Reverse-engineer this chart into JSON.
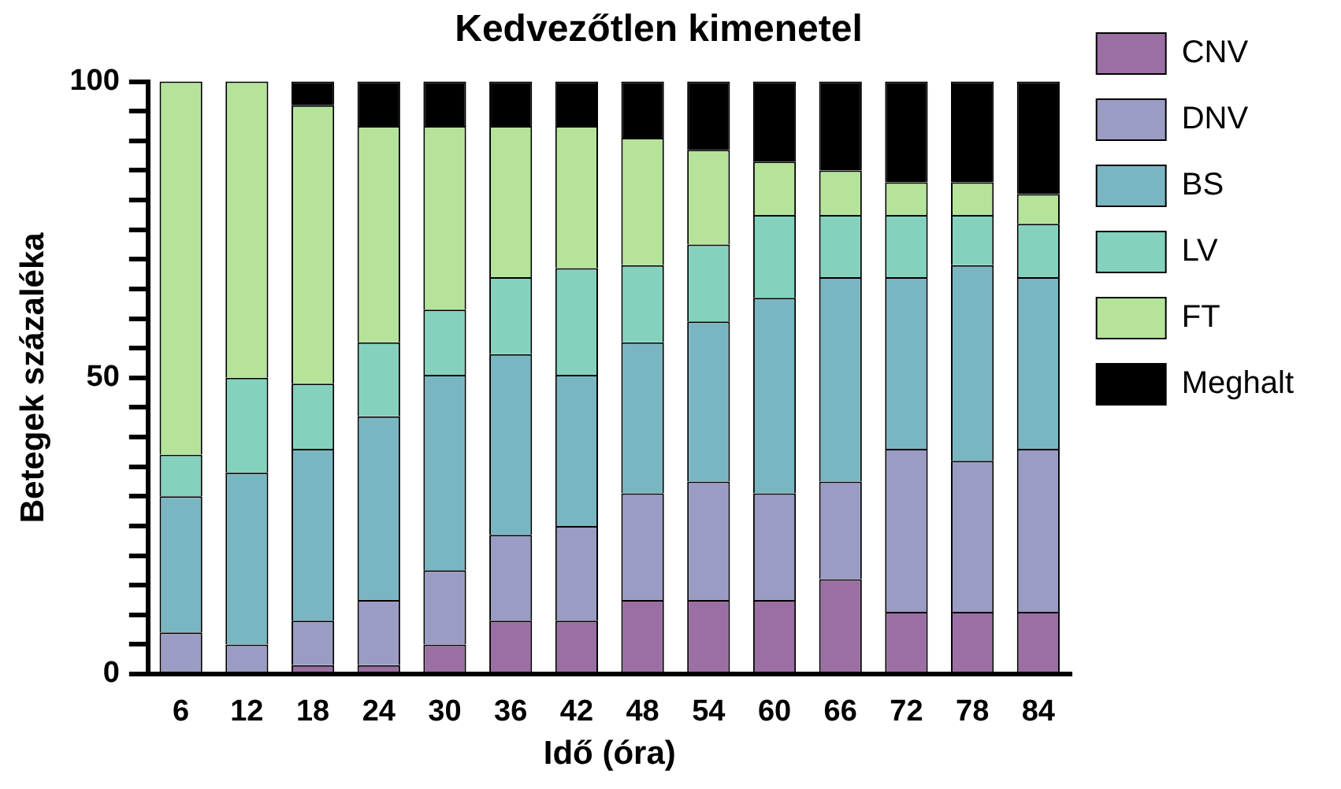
{
  "chart_data": {
    "type": "bar",
    "title": "Kedvezőtlen kimenetel",
    "xlabel": "Idő (óra)",
    "ylabel": "Betegek százaléka",
    "categories": [
      "6",
      "12",
      "18",
      "24",
      "30",
      "36",
      "42",
      "48",
      "54",
      "60",
      "66",
      "72",
      "78",
      "84"
    ],
    "stacked": true,
    "legend": "right",
    "grid": false,
    "ylim": [
      0,
      100
    ],
    "yticks": [
      0,
      {
        "value": 5,
        "label": null
      },
      {
        "value": 10,
        "label": null
      },
      {
        "value": 15,
        "label": null
      },
      {
        "value": 20,
        "label": null
      },
      {
        "value": 25,
        "label": null
      },
      {
        "value": 30,
        "label": null
      },
      {
        "value": 35,
        "label": null
      },
      {
        "value": 40,
        "label": null
      },
      {
        "value": 45,
        "label": null
      },
      50,
      {
        "value": 55,
        "label": null
      },
      {
        "value": 60,
        "label": null
      },
      {
        "value": 65,
        "label": null
      },
      {
        "value": 70,
        "label": null
      },
      {
        "value": 75,
        "label": null
      },
      {
        "value": 80,
        "label": null
      },
      {
        "value": 85,
        "label": null
      },
      {
        "value": 90,
        "label": null
      },
      {
        "value": 95,
        "label": null
      },
      100
    ],
    "series": [
      {
        "name": "CNV",
        "color": "#9b6fa3",
        "values": [
          0,
          0,
          1.5,
          1.5,
          5,
          9,
          9,
          12.5,
          12.5,
          12.5,
          16,
          10.5,
          10.5,
          10.5
        ]
      },
      {
        "name": "DNV",
        "color": "#9a9cc4",
        "values": [
          7,
          5,
          7.5,
          11,
          12.5,
          14.5,
          16,
          18,
          20,
          18,
          16.5,
          27.5,
          25.5,
          27.5
        ]
      },
      {
        "name": "BS",
        "color": "#7ab6c2",
        "values": [
          23,
          29,
          29,
          31,
          33,
          30.5,
          25.5,
          25.5,
          27,
          33,
          34.5,
          29,
          33,
          29
        ]
      },
      {
        "name": "LV",
        "color": "#84d2bd",
        "values": [
          7,
          16,
          11,
          12.5,
          11,
          13,
          18,
          13,
          13,
          14,
          10.5,
          10.5,
          8.5,
          9
        ]
      },
      {
        "name": "FT",
        "color": "#b5e39a",
        "values": [
          63,
          50,
          47,
          36.5,
          31,
          25.5,
          24,
          21.5,
          16,
          9,
          7.5,
          5.5,
          5.5,
          5
        ]
      },
      {
        "name": "Meghalt",
        "color": "#000000",
        "values": [
          0,
          0,
          4,
          7.5,
          7.5,
          7.5,
          7.5,
          9.5,
          11.5,
          13.5,
          15,
          17,
          17,
          19
        ]
      }
    ]
  }
}
